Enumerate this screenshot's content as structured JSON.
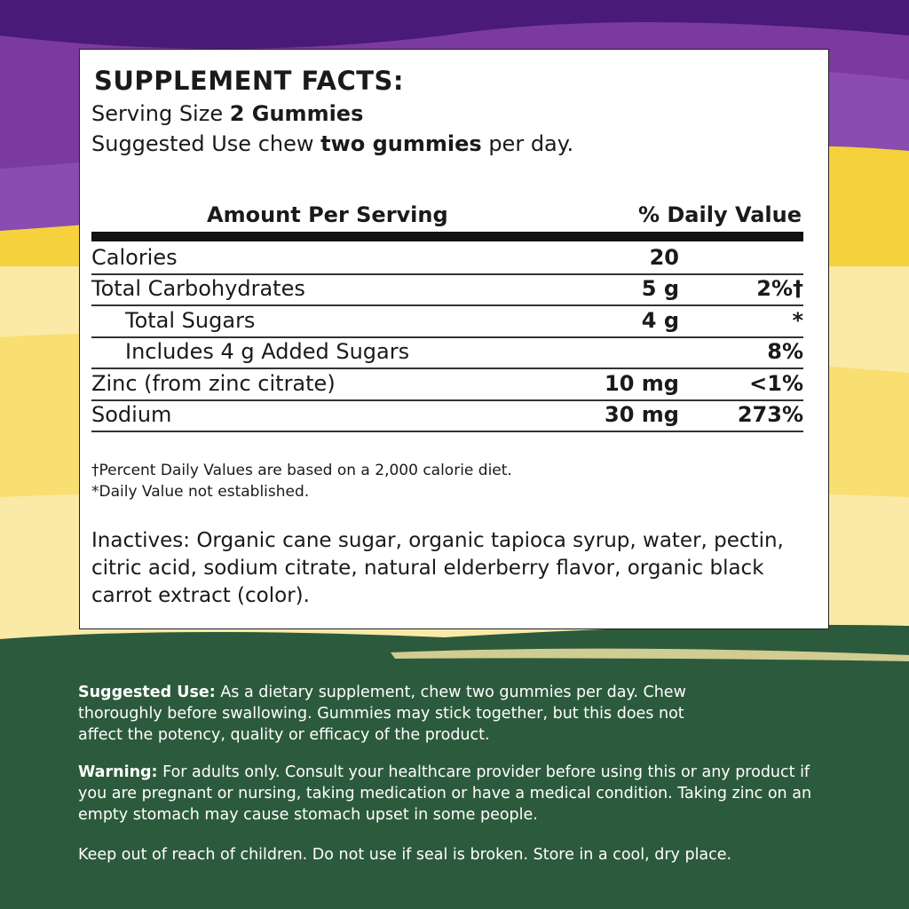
{
  "colors": {
    "purple_dark": "#4a1a78",
    "purple": "#7a3aa0",
    "yellow": "#f5d23c",
    "cream": "#fbe9a8",
    "green": "#2c5a3c"
  },
  "facts": {
    "title": "SUPPLEMENT FACTS:",
    "serving_size_label": "Serving Size ",
    "serving_size_value": "2 Gummies",
    "suggested_label": "Suggested Use chew ",
    "suggested_value": "two gummies",
    "suggested_suffix": " per day.",
    "header_amount": "Amount Per Serving",
    "header_dv": "% Daily Value",
    "rows": [
      {
        "name": "Calories",
        "amount": "20",
        "dv": ""
      },
      {
        "name": "Total Carbohydrates",
        "amount": "5 g",
        "dv": "2%†"
      },
      {
        "name": "Total Sugars",
        "amount": "4 g",
        "dv": "*"
      },
      {
        "name": "Includes 4 g Added Sugars",
        "amount": "",
        "dv": "8%"
      },
      {
        "name": "Zinc (from zinc citrate)",
        "amount": "10 mg",
        "dv": "<1%"
      },
      {
        "name": "Sodium",
        "amount": "30 mg",
        "dv": "273%"
      }
    ],
    "footnote1": "†Percent Daily Values are based on a 2,000 calorie diet.",
    "footnote2": "*Daily Value not established.",
    "inactives": "Inactives: Organic cane sugar, organic tapioca syrup, water, pectin, citric acid, sodium citrate, natural elderberry flavor, organic black carrot extract (color)."
  },
  "bottom": {
    "suggested_label": "Suggested Use:",
    "suggested_text": " As a dietary supplement, chew two gummies per day. Chew thoroughly before swallowing. Gummies may stick together, but this does not affect the potency, quality or efficacy of the product.",
    "warning_label": "Warning:",
    "warning_text": " For adults only. Consult your healthcare provider before using this or any product if you are pregnant or nursing, taking medication or have a medical condition. Taking zinc on an empty stomach may cause stomach upset in some people.",
    "keep_text": "Keep out of reach of children. Do not use if seal is broken. Store in a cool, dry place."
  }
}
